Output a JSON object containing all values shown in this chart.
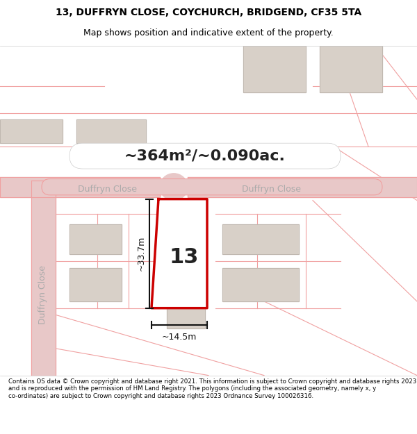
{
  "title_line1": "13, DUFFRYN CLOSE, COYCHURCH, BRIDGEND, CF35 5TA",
  "title_line2": "Map shows position and indicative extent of the property.",
  "area_label": "~364m²/~0.090ac.",
  "street_label_left": "Duffryn Close",
  "street_label_right": "Duffryn Close",
  "street_label_vertical": "Duffryn Close",
  "number_label": "13",
  "dim_horiz": "~14.5m",
  "dim_vert": "~33.7m",
  "footer_text": "Contains OS data © Crown copyright and database right 2021. This information is subject to Crown copyright and database rights 2023 and is reproduced with the permission of HM Land Registry. The polygons (including the associated geometry, namely x, y co-ordinates) are subject to Crown copyright and database rights 2023 Ordnance Survey 100026316.",
  "bg_color": "#f5f0eb",
  "map_bg": "#f5f0eb",
  "title_bg": "#ffffff",
  "footer_bg": "#ffffff",
  "road_color": "#e8c8c8",
  "road_stroke": "#f0a0a0",
  "building_color": "#d8d0c8",
  "building_stroke": "#c0b8b0",
  "plot_fill": "white",
  "plot_stroke": "#cc0000",
  "dim_line_color": "#111111",
  "street_label_color": "#aaaaaa",
  "area_label_color": "#222222",
  "number_color": "#222222"
}
